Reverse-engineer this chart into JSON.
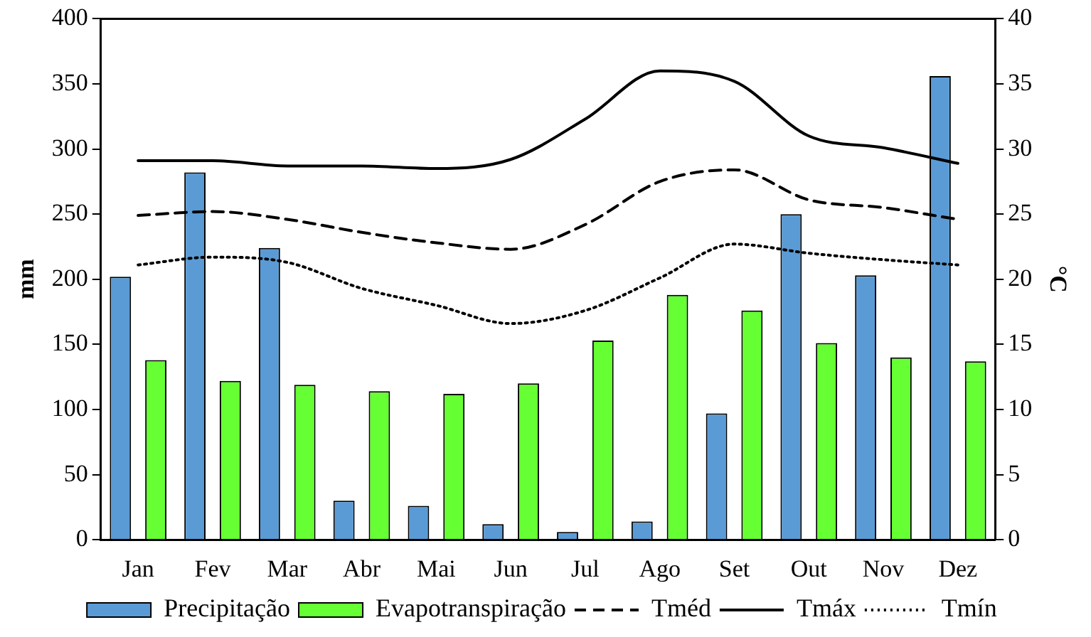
{
  "chart_data": {
    "type": "bar",
    "categories": [
      "Jan",
      "Fev",
      "Mar",
      "Abr",
      "Mai",
      "Jun",
      "Jul",
      "Ago",
      "Set",
      "Out",
      "Nov",
      "Dez"
    ],
    "series": [
      {
        "name": "Precipitação",
        "color": "#5b9bd5",
        "values": [
          202,
          282,
          224,
          30,
          26,
          12,
          6,
          14,
          97,
          250,
          203,
          356
        ]
      },
      {
        "name": "Evapotranspiração",
        "color": "#66ff33",
        "values": [
          138,
          122,
          119,
          114,
          112,
          120,
          153,
          188,
          176,
          151,
          140,
          137
        ]
      },
      {
        "name": "Tméd",
        "type": "line",
        "axis": "y2",
        "color": "#000000",
        "line_style": "dashed",
        "values": [
          24.9,
          25.2,
          24.6,
          23.6,
          22.8,
          22.3,
          24.2,
          27.5,
          28.4,
          26.1,
          25.5,
          24.6
        ]
      },
      {
        "name": "Tmáx",
        "type": "line",
        "axis": "y2",
        "color": "#000000",
        "line_style": "solid",
        "values": [
          29.1,
          29.1,
          28.7,
          28.7,
          28.5,
          29.2,
          32.3,
          36.0,
          35.2,
          31.0,
          30.1,
          28.9
        ]
      },
      {
        "name": "Tmín",
        "type": "line",
        "axis": "y2",
        "color": "#000000",
        "line_style": "dotted",
        "values": [
          21.1,
          21.7,
          21.3,
          19.3,
          18.0,
          16.6,
          17.6,
          20.1,
          22.7,
          22.0,
          21.5,
          21.1
        ]
      }
    ],
    "ylabel": "mm",
    "y2label": "°C",
    "ylim": [
      0,
      400
    ],
    "yticks": [
      0,
      50,
      100,
      150,
      200,
      250,
      300,
      350,
      400
    ],
    "y2lim": [
      0,
      40
    ],
    "y2ticks": [
      0,
      5,
      10,
      15,
      20,
      25,
      30,
      35,
      40
    ],
    "grid": false,
    "legend": "bottom",
    "marker": "none"
  }
}
